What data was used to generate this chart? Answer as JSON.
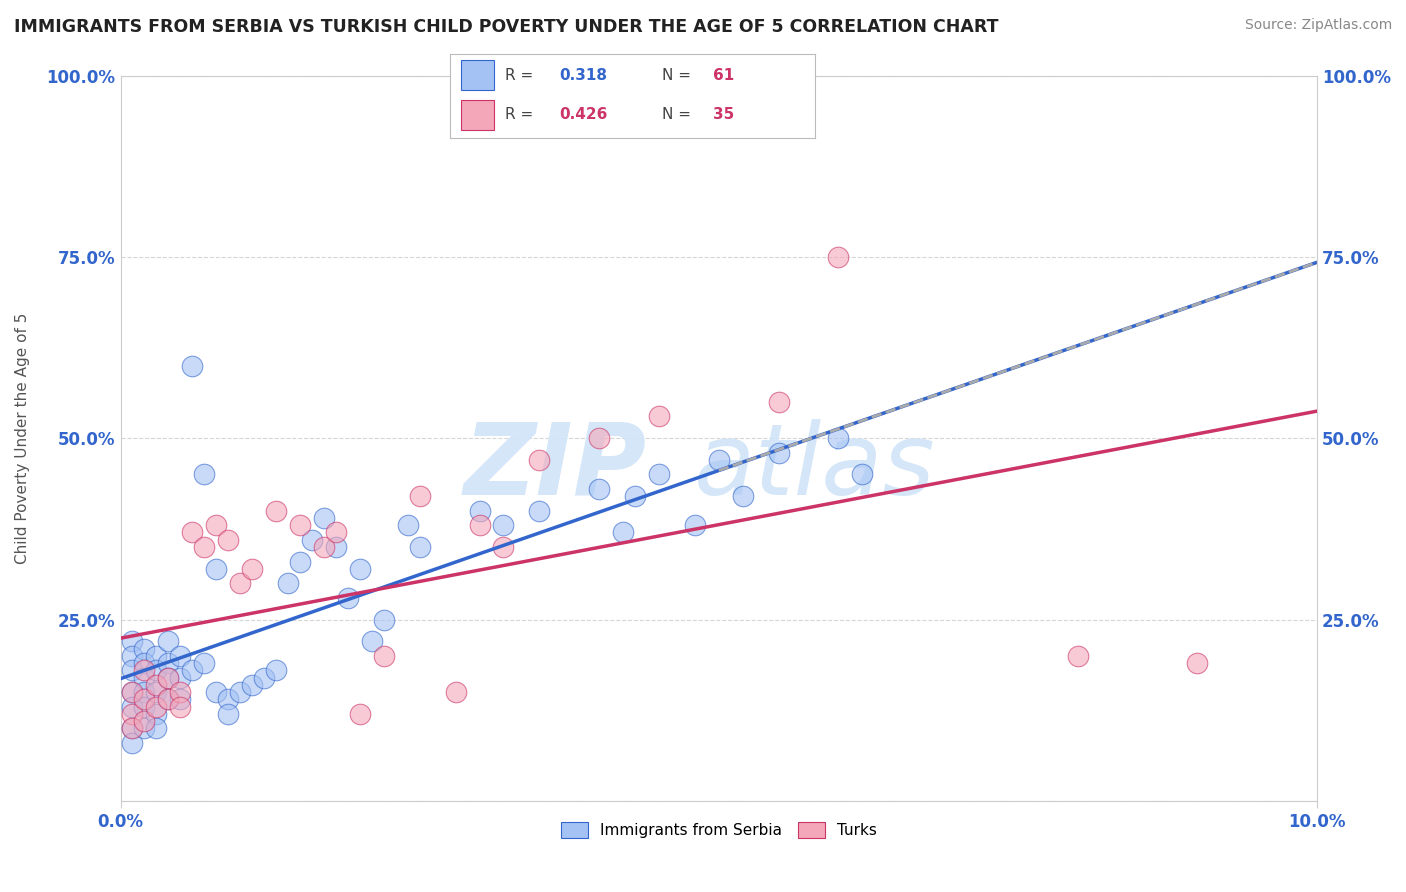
{
  "title": "IMMIGRANTS FROM SERBIA VS TURKISH CHILD POVERTY UNDER THE AGE OF 5 CORRELATION CHART",
  "source": "Source: ZipAtlas.com",
  "ylabel": "Child Poverty Under the Age of 5",
  "xmin": 0.0,
  "xmax": 0.1,
  "ymin": 0.0,
  "ymax": 1.0,
  "series1_name": "Immigrants from Serbia",
  "series1_R": "0.318",
  "series1_N": "61",
  "series1_color": "#a4c2f4",
  "series1_line_color": "#3366cc",
  "series2_name": "Turks",
  "series2_R": "0.426",
  "series2_N": "35",
  "series2_color": "#f4a7b9",
  "series2_line_color": "#cc3366",
  "background_color": "#ffffff",
  "grid_color": "#cccccc",
  "title_color": "#222222",
  "series1_x": [
    0.001,
    0.001,
    0.001,
    0.001,
    0.001,
    0.001,
    0.001,
    0.002,
    0.002,
    0.002,
    0.002,
    0.002,
    0.002,
    0.003,
    0.003,
    0.003,
    0.003,
    0.003,
    0.004,
    0.004,
    0.004,
    0.004,
    0.005,
    0.005,
    0.005,
    0.006,
    0.006,
    0.007,
    0.007,
    0.008,
    0.008,
    0.009,
    0.009,
    0.01,
    0.011,
    0.012,
    0.013,
    0.014,
    0.015,
    0.016,
    0.017,
    0.018,
    0.019,
    0.02,
    0.021,
    0.022,
    0.024,
    0.025,
    0.03,
    0.032,
    0.035,
    0.04,
    0.042,
    0.043,
    0.045,
    0.048,
    0.05,
    0.052,
    0.055,
    0.06,
    0.062
  ],
  "series1_y": [
    0.22,
    0.2,
    0.18,
    0.15,
    0.13,
    0.1,
    0.08,
    0.21,
    0.19,
    0.17,
    0.15,
    0.13,
    0.1,
    0.2,
    0.18,
    0.15,
    0.12,
    0.1,
    0.22,
    0.19,
    0.17,
    0.14,
    0.2,
    0.17,
    0.14,
    0.6,
    0.18,
    0.45,
    0.19,
    0.32,
    0.15,
    0.14,
    0.12,
    0.15,
    0.16,
    0.17,
    0.18,
    0.3,
    0.33,
    0.36,
    0.39,
    0.35,
    0.28,
    0.32,
    0.22,
    0.25,
    0.38,
    0.35,
    0.4,
    0.38,
    0.4,
    0.43,
    0.37,
    0.42,
    0.45,
    0.38,
    0.47,
    0.42,
    0.48,
    0.5,
    0.45
  ],
  "series2_x": [
    0.001,
    0.001,
    0.001,
    0.002,
    0.002,
    0.002,
    0.003,
    0.003,
    0.004,
    0.004,
    0.005,
    0.005,
    0.006,
    0.007,
    0.008,
    0.009,
    0.01,
    0.011,
    0.013,
    0.015,
    0.017,
    0.018,
    0.02,
    0.022,
    0.025,
    0.028,
    0.03,
    0.032,
    0.035,
    0.04,
    0.045,
    0.055,
    0.06,
    0.08,
    0.09
  ],
  "series2_y": [
    0.15,
    0.12,
    0.1,
    0.18,
    0.14,
    0.11,
    0.16,
    0.13,
    0.17,
    0.14,
    0.15,
    0.13,
    0.37,
    0.35,
    0.38,
    0.36,
    0.3,
    0.32,
    0.4,
    0.38,
    0.35,
    0.37,
    0.12,
    0.2,
    0.42,
    0.15,
    0.38,
    0.35,
    0.47,
    0.5,
    0.53,
    0.55,
    0.75,
    0.2,
    0.19
  ]
}
